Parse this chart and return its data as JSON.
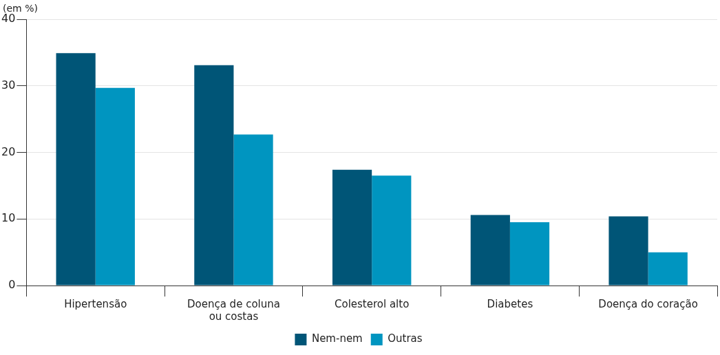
{
  "chart_data": {
    "type": "bar",
    "ylabel": "(em %)",
    "categories": [
      "Hipertensão",
      "Doença de coluna\nou costas",
      "Colesterol alto",
      "Diabetes",
      "Doença do coração"
    ],
    "series": [
      {
        "name": "Nem-nem",
        "color": "#005577",
        "values": [
          34.9,
          33.1,
          17.4,
          10.6,
          10.4
        ]
      },
      {
        "name": "Outras",
        "color": "#0095c0",
        "values": [
          29.7,
          22.7,
          16.5,
          9.5,
          5.0
        ]
      }
    ],
    "ylim": [
      0,
      40
    ],
    "yticks": [
      0,
      10,
      20,
      30,
      40
    ],
    "grid": "y",
    "legend": "bottom"
  }
}
